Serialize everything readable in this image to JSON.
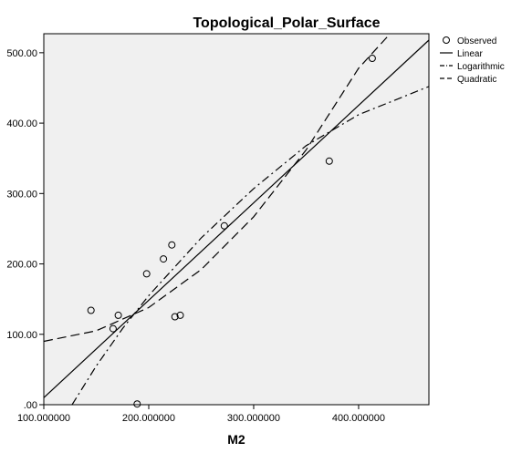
{
  "chart_data": {
    "type": "scatter",
    "title": "Topological_Polar_Surface",
    "xlabel": "M2",
    "ylabel": "",
    "xlim": [
      100,
      467
    ],
    "ylim": [
      0,
      527
    ],
    "x_ticks": [
      100,
      200,
      300,
      400
    ],
    "x_tick_labels": [
      "100.000000",
      "200.000000",
      "300.000000",
      "400.000000"
    ],
    "y_ticks": [
      0,
      100,
      200,
      300,
      400,
      500
    ],
    "y_tick_labels": [
      ".00",
      "100.00",
      "200.00",
      "300.00",
      "400.00",
      "500.00"
    ],
    "plot_background": "#f0f0f0",
    "legend": {
      "position": "right",
      "entries": [
        "Observed",
        "Linear",
        "Logarithmic",
        "Quadratic"
      ]
    },
    "observed": [
      {
        "x": 145,
        "y": 134
      },
      {
        "x": 166,
        "y": 108
      },
      {
        "x": 171,
        "y": 127
      },
      {
        "x": 189,
        "y": 1
      },
      {
        "x": 198,
        "y": 186
      },
      {
        "x": 214,
        "y": 207
      },
      {
        "x": 222,
        "y": 227
      },
      {
        "x": 225,
        "y": 125
      },
      {
        "x": 230,
        "y": 127
      },
      {
        "x": 272,
        "y": 254
      },
      {
        "x": 372,
        "y": 346
      },
      {
        "x": 413,
        "y": 492
      }
    ],
    "series": [
      {
        "name": "Linear",
        "dash": "solid",
        "x": [
          100,
          467
        ],
        "y": [
          10,
          518
        ]
      },
      {
        "name": "Logarithmic",
        "dash": "dashdot",
        "x": [
          127,
          150,
          175,
          200,
          250,
          300,
          350,
          400,
          467
        ],
        "y": [
          0,
          55,
          108,
          155,
          237,
          307,
          368,
          412,
          452
        ]
      },
      {
        "name": "Quadratic",
        "dash": "dashed",
        "x": [
          100,
          150,
          200,
          250,
          300,
          350,
          400,
          430
        ],
        "y": [
          90,
          105,
          138,
          192,
          267,
          362,
          478,
          527
        ]
      }
    ]
  }
}
